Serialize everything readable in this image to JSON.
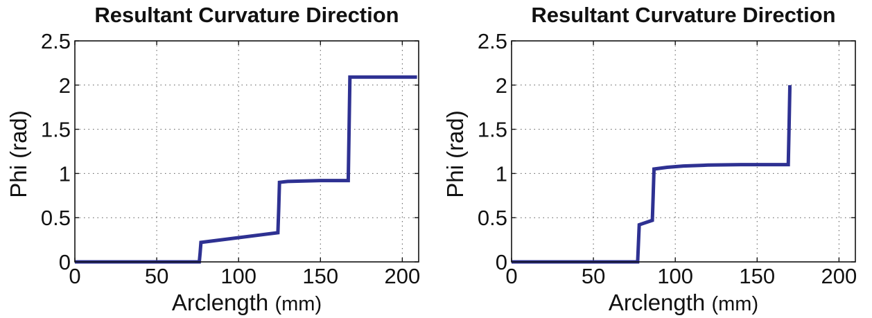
{
  "chart_data": [
    {
      "type": "line",
      "title": "Resultant Curvature Direction",
      "xlabel_main": "Arclength",
      "xlabel_unit": "(mm)",
      "ylabel": "Phi (rad)",
      "xlim": [
        0,
        210
      ],
      "ylim": [
        0,
        2.5
      ],
      "xticks": [
        "0",
        "50",
        "100",
        "150",
        "200"
      ],
      "yticks": [
        "0",
        "0.5",
        "1",
        "1.5",
        "2",
        "2.5"
      ],
      "grid": true,
      "line_color": "#2e3192",
      "series": [
        {
          "x": [
            0,
            76,
            76.5,
            77,
            124,
            124.5,
            125,
            130,
            140,
            150,
            160,
            167,
            167.5,
            168,
            190,
            209
          ],
          "y": [
            0,
            0,
            0.1,
            0.22,
            0.33,
            0.6,
            0.9,
            0.91,
            0.915,
            0.92,
            0.92,
            0.92,
            1.5,
            2.09,
            2.09,
            2.09
          ]
        }
      ]
    },
    {
      "type": "line",
      "title": "Resultant Curvature Direction",
      "xlabel_main": "Arclength",
      "xlabel_unit": "(mm)",
      "ylabel": "Phi (rad)",
      "xlim": [
        0,
        210
      ],
      "ylim": [
        0,
        2.5
      ],
      "xticks": [
        "0",
        "50",
        "100",
        "150",
        "200"
      ],
      "yticks": [
        "0",
        "0.5",
        "1",
        "1.5",
        "2",
        "2.5"
      ],
      "grid": true,
      "line_color": "#2e3192",
      "series": [
        {
          "x": [
            0,
            77,
            77.5,
            78,
            86,
            86.5,
            87,
            95,
            105,
            120,
            140,
            160,
            169,
            169.5,
            170,
            170.8,
            171
          ],
          "y": [
            0,
            0,
            0.2,
            0.42,
            0.47,
            0.75,
            1.05,
            1.07,
            1.085,
            1.095,
            1.1,
            1.1,
            1.1,
            1.5,
            1.98,
            1.98,
            1.98
          ]
        }
      ]
    }
  ]
}
